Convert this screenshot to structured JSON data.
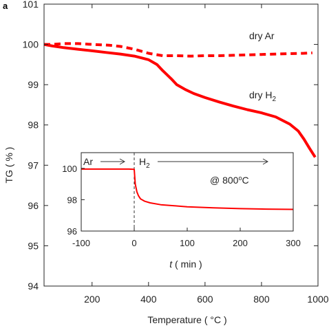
{
  "panel_label": "a",
  "chart_data": [
    {
      "id": "main",
      "type": "line",
      "xlabel": "Temperature ( °C )",
      "ylabel": "TG ( % )",
      "xlim": [
        30,
        1000
      ],
      "ylim": [
        94,
        101
      ],
      "xticks": [
        200,
        400,
        600,
        800,
        1000
      ],
      "yticks": [
        94,
        95,
        96,
        97,
        98,
        99,
        100,
        101
      ],
      "grid": false,
      "colors": {
        "series": "#ff0000"
      },
      "annotations": {
        "dry_ar": "dry Ar",
        "dry_h2_prefix": "dry H",
        "dry_h2_sub": "2"
      },
      "series": [
        {
          "name": "dry Ar",
          "style": "dashed",
          "x": [
            30,
            60,
            100,
            150,
            200,
            260,
            300,
            350,
            400,
            450,
            500,
            550,
            600,
            650,
            700,
            750,
            800,
            850,
            900,
            950,
            980
          ],
          "y": [
            100.0,
            100.0,
            100.02,
            100.02,
            100.0,
            99.98,
            99.95,
            99.88,
            99.78,
            99.72,
            99.72,
            99.71,
            99.72,
            99.72,
            99.73,
            99.74,
            99.75,
            99.76,
            99.77,
            99.78,
            99.79
          ]
        },
        {
          "name": "dry H2",
          "style": "solid",
          "x": [
            30,
            60,
            100,
            150,
            200,
            250,
            300,
            350,
            400,
            430,
            450,
            480,
            500,
            530,
            560,
            600,
            650,
            700,
            750,
            800,
            850,
            900,
            930,
            950,
            970,
            990
          ],
          "y": [
            100.0,
            99.96,
            99.92,
            99.88,
            99.84,
            99.8,
            99.76,
            99.71,
            99.62,
            99.5,
            99.35,
            99.15,
            99.0,
            98.88,
            98.78,
            98.68,
            98.57,
            98.47,
            98.38,
            98.3,
            98.2,
            98.02,
            97.85,
            97.65,
            97.42,
            97.2
          ]
        }
      ]
    },
    {
      "id": "inset",
      "type": "line",
      "xlabel_var": "t",
      "xlabel_rest": " ( min )",
      "xlim": [
        -100,
        300
      ],
      "ylim": [
        96,
        101
      ],
      "xticks": [
        -100,
        0,
        100,
        200,
        300
      ],
      "yticks": [
        96,
        98,
        100
      ],
      "grid": false,
      "colors": {
        "series": "#ff0000"
      },
      "vline_x": 0,
      "annotations": {
        "ar": "Ar",
        "h2_prefix": "H",
        "h2_sub": "2",
        "temp_prefix": "@ 800",
        "temp_sup": "o",
        "temp_suffix": "C"
      },
      "series": [
        {
          "x": [
            -100,
            -50,
            -10,
            0,
            2,
            5,
            8,
            12,
            20,
            30,
            50,
            80,
            100,
            150,
            200,
            250,
            300
          ],
          "y": [
            99.95,
            99.95,
            99.95,
            99.94,
            99.0,
            98.5,
            98.25,
            98.05,
            97.9,
            97.8,
            97.68,
            97.6,
            97.55,
            97.48,
            97.43,
            97.4,
            97.38
          ]
        }
      ]
    }
  ]
}
